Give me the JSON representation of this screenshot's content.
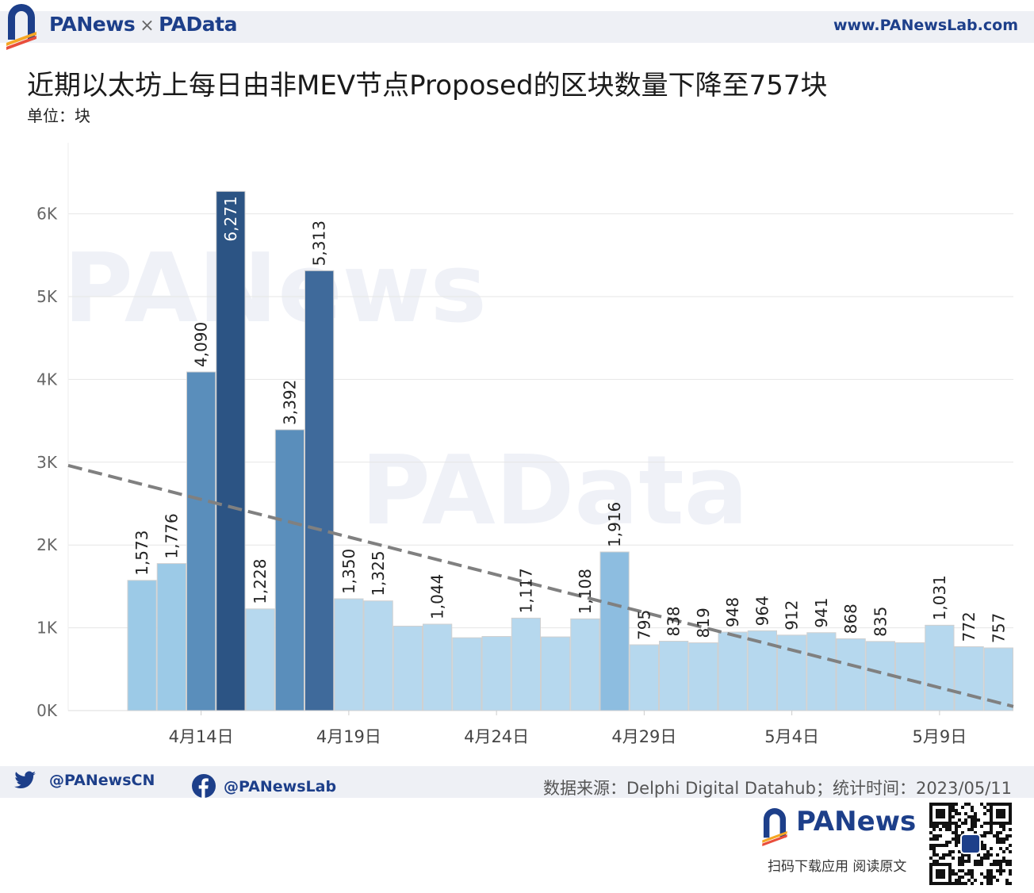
{
  "header": {
    "brand_a": "PANews",
    "separator": "×",
    "brand_b": "PAData",
    "site_url": "www.PANewsLab.com"
  },
  "title": "近期以太坊上每日由非MEV节点Proposed的区块数量下降至757块",
  "unit_label": "单位：块",
  "watermarks": [
    "PANews",
    "PAData"
  ],
  "footer": {
    "twitter": "@PANewsCN",
    "facebook": "@PANewsLab",
    "source_label": "数据来源：",
    "source_value": "Delphi Digital Datahub",
    "time_label": "；统计时间：",
    "time_value": "2023/05/11",
    "brand": "PANews",
    "caption": "扫码下载应用  阅读原文"
  },
  "colors": {
    "header_bg": "#eef0f5",
    "brand_blue": "#1d3f8a",
    "trend_line": "#808080",
    "grid": "#e6e6e6",
    "bar_lightest": "#b6d8ee",
    "bar_light": "#9ccae7",
    "bar_mid": "#8dbde0",
    "bar_medium": "#5a8ebb",
    "bar_dark": "#3f6a9b",
    "bar_darkest": "#2c5484"
  },
  "chart_data": {
    "type": "bar",
    "title": "近期以太坊上每日由非MEV节点Proposed的区块数量下降至757块",
    "ylabel": "单位：块",
    "ylim": [
      0,
      7000
    ],
    "y_ticks": [
      {
        "value": 0,
        "label": "0K"
      },
      {
        "value": 1000,
        "label": "1K"
      },
      {
        "value": 2000,
        "label": "2K"
      },
      {
        "value": 3000,
        "label": "3K"
      },
      {
        "value": 4000,
        "label": "4K"
      },
      {
        "value": 5000,
        "label": "5K"
      },
      {
        "value": 6000,
        "label": "6K"
      }
    ],
    "x_tick_labels": [
      {
        "date": "2023-04-14",
        "label": "4月14日"
      },
      {
        "date": "2023-04-19",
        "label": "4月19日"
      },
      {
        "date": "2023-04-24",
        "label": "4月24日"
      },
      {
        "date": "2023-04-29",
        "label": "4月29日"
      },
      {
        "date": "2023-05-04",
        "label": "5月4日"
      },
      {
        "date": "2023-05-09",
        "label": "5月9日"
      }
    ],
    "x_range": [
      "2023-04-10",
      "2023-05-12"
    ],
    "grid": true,
    "bars": [
      {
        "date": "2023-04-12",
        "value": 1573,
        "label": "1,573"
      },
      {
        "date": "2023-04-13",
        "value": 1776,
        "label": "1,776"
      },
      {
        "date": "2023-04-14",
        "value": 4090,
        "label": "4,090"
      },
      {
        "date": "2023-04-15",
        "value": 6271,
        "label": "6,271"
      },
      {
        "date": "2023-04-16",
        "value": 1228,
        "label": "1,228"
      },
      {
        "date": "2023-04-17",
        "value": 3392,
        "label": "3,392"
      },
      {
        "date": "2023-04-18",
        "value": 5313,
        "label": "5,313"
      },
      {
        "date": "2023-04-19",
        "value": 1350,
        "label": "1,350"
      },
      {
        "date": "2023-04-20",
        "value": 1325,
        "label": "1,325"
      },
      {
        "date": "2023-04-21",
        "value": 1020,
        "label": ""
      },
      {
        "date": "2023-04-22",
        "value": 1044,
        "label": "1,044"
      },
      {
        "date": "2023-04-23",
        "value": 880,
        "label": ""
      },
      {
        "date": "2023-04-24",
        "value": 895,
        "label": ""
      },
      {
        "date": "2023-04-25",
        "value": 1117,
        "label": "1,117"
      },
      {
        "date": "2023-04-26",
        "value": 890,
        "label": ""
      },
      {
        "date": "2023-04-27",
        "value": 1108,
        "label": "1,108"
      },
      {
        "date": "2023-04-28",
        "value": 1916,
        "label": "1,916"
      },
      {
        "date": "2023-04-29",
        "value": 795,
        "label": "795"
      },
      {
        "date": "2023-04-30",
        "value": 838,
        "label": "838"
      },
      {
        "date": "2023-05-01",
        "value": 819,
        "label": "819"
      },
      {
        "date": "2023-05-02",
        "value": 948,
        "label": "948"
      },
      {
        "date": "2023-05-03",
        "value": 964,
        "label": "964"
      },
      {
        "date": "2023-05-04",
        "value": 912,
        "label": "912"
      },
      {
        "date": "2023-05-05",
        "value": 941,
        "label": "941"
      },
      {
        "date": "2023-05-06",
        "value": 868,
        "label": "868"
      },
      {
        "date": "2023-05-07",
        "value": 835,
        "label": "835"
      },
      {
        "date": "2023-05-08",
        "value": 820,
        "label": ""
      },
      {
        "date": "2023-05-09",
        "value": 1031,
        "label": "1,031"
      },
      {
        "date": "2023-05-10",
        "value": 772,
        "label": "772"
      },
      {
        "date": "2023-05-11",
        "value": 757,
        "label": "757"
      }
    ],
    "trend_line": {
      "style": "dashed",
      "start": {
        "date": "2023-04-10",
        "value": 2960
      },
      "end": {
        "date": "2023-05-12",
        "value": 50
      }
    }
  }
}
